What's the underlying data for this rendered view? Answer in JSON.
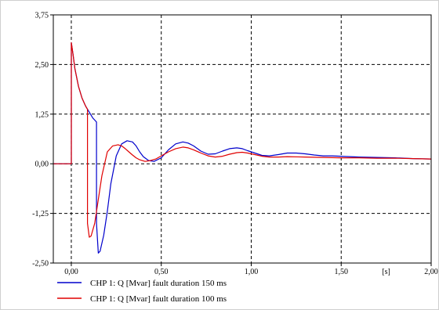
{
  "chart_data": {
    "type": "line",
    "title": "",
    "xlabel": "",
    "ylabel": "",
    "x_unit_label": "[s]",
    "xlim": [
      -0.1,
      2.0
    ],
    "ylim": [
      -2.5,
      3.75
    ],
    "xticks": [
      0.0,
      0.5,
      1.0,
      1.5,
      2.0
    ],
    "xtick_labels": [
      "0,00",
      "0,50",
      "1,00",
      "1,50",
      "2,00"
    ],
    "yticks": [
      3.75,
      2.5,
      1.25,
      0.0,
      -1.25,
      -2.5
    ],
    "ytick_labels": [
      "3,75",
      "2,50",
      "1,25",
      "0,00",
      "-1,25",
      "-2,50"
    ],
    "grid": true,
    "legend_position": "bottom-left",
    "series": [
      {
        "name": "CHP 1: Q [Mvar] fault duration 150 ms",
        "color": "#0000cc",
        "x": [
          -0.1,
          0.0,
          0.0,
          0.01,
          0.02,
          0.04,
          0.06,
          0.08,
          0.1,
          0.12,
          0.14,
          0.14,
          0.15,
          0.16,
          0.18,
          0.2,
          0.22,
          0.25,
          0.28,
          0.31,
          0.34,
          0.36,
          0.38,
          0.4,
          0.43,
          0.46,
          0.5,
          0.54,
          0.58,
          0.62,
          0.65,
          0.68,
          0.72,
          0.76,
          0.8,
          0.84,
          0.88,
          0.92,
          0.95,
          0.98,
          1.02,
          1.06,
          1.1,
          1.15,
          1.2,
          1.25,
          1.3,
          1.35,
          1.4,
          1.45,
          1.5,
          1.6,
          1.7,
          1.8,
          1.9,
          2.0
        ],
        "y": [
          0.0,
          0.0,
          3.05,
          2.75,
          2.4,
          1.95,
          1.65,
          1.45,
          1.3,
          1.15,
          1.05,
          -1.5,
          -2.25,
          -2.2,
          -1.8,
          -1.2,
          -0.5,
          0.2,
          0.5,
          0.58,
          0.55,
          0.45,
          0.3,
          0.18,
          0.08,
          0.06,
          0.15,
          0.35,
          0.5,
          0.55,
          0.52,
          0.45,
          0.32,
          0.24,
          0.25,
          0.32,
          0.38,
          0.4,
          0.38,
          0.33,
          0.27,
          0.21,
          0.2,
          0.23,
          0.27,
          0.27,
          0.25,
          0.22,
          0.2,
          0.2,
          0.19,
          0.17,
          0.16,
          0.15,
          0.13,
          0.12
        ]
      },
      {
        "name": "CHP 1: Q [Mvar] fault duration 100 ms",
        "color": "#e00000",
        "x": [
          -0.1,
          0.0,
          0.0,
          0.01,
          0.02,
          0.04,
          0.06,
          0.08,
          0.09,
          0.09,
          0.1,
          0.11,
          0.13,
          0.15,
          0.17,
          0.2,
          0.23,
          0.26,
          0.28,
          0.3,
          0.32,
          0.34,
          0.36,
          0.38,
          0.41,
          0.44,
          0.47,
          0.5,
          0.54,
          0.58,
          0.62,
          0.65,
          0.68,
          0.72,
          0.76,
          0.8,
          0.84,
          0.88,
          0.92,
          0.95,
          0.98,
          1.02,
          1.06,
          1.1,
          1.15,
          1.2,
          1.3,
          1.4,
          1.5,
          1.6,
          1.7,
          1.8,
          1.9,
          2.0
        ],
        "y": [
          0.0,
          0.0,
          3.05,
          2.75,
          2.4,
          1.95,
          1.65,
          1.45,
          1.37,
          -1.5,
          -1.85,
          -1.82,
          -1.5,
          -0.9,
          -0.3,
          0.3,
          0.45,
          0.48,
          0.45,
          0.38,
          0.3,
          0.22,
          0.15,
          0.1,
          0.06,
          0.08,
          0.12,
          0.2,
          0.3,
          0.38,
          0.42,
          0.4,
          0.35,
          0.27,
          0.2,
          0.17,
          0.19,
          0.24,
          0.28,
          0.29,
          0.27,
          0.23,
          0.19,
          0.17,
          0.17,
          0.18,
          0.17,
          0.16,
          0.15,
          0.15,
          0.14,
          0.14,
          0.13,
          0.12
        ]
      }
    ]
  }
}
